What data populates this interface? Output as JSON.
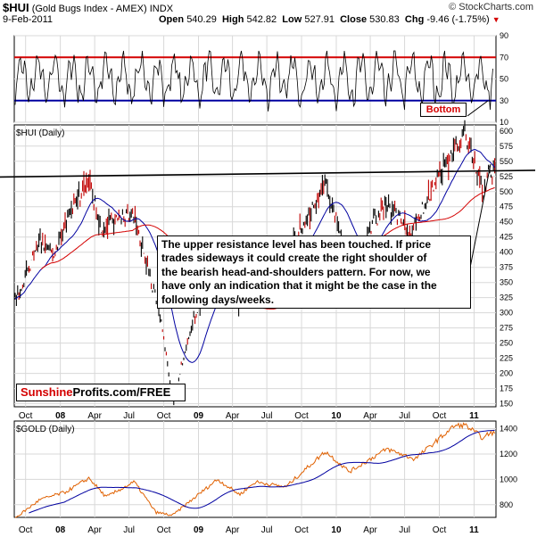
{
  "header": {
    "symbol": "$HUI",
    "name": "(Gold Bugs Index - AMEX)",
    "exchange": "INDX",
    "date": "9-Feb-2011",
    "open_label": "Open",
    "open": "540.29",
    "high_label": "High",
    "high": "542.82",
    "low_label": "Low",
    "low": "527.91",
    "close_label": "Close",
    "close": "530.83",
    "chg_label": "Chg",
    "chg": "-9.46 (-1.75%)",
    "chg_arrow": "▼",
    "watermark": "© StockCharts.com"
  },
  "annotation": {
    "lines": [
      "The upper resistance level has been touched. If price",
      "trades sideways it could create the right shoulder of",
      "the bearish head-and-shoulders pattern. For now, we",
      "have only an indication that it might be the case in the",
      "following days/weeks."
    ]
  },
  "branding": {
    "part1": "Sunshine",
    "part2": "Profits.com/FREE"
  },
  "bottom_label": "Bottom",
  "colors": {
    "price_bar": "#000000",
    "down_bar": "#c00000",
    "ma_short": "#0000a0",
    "ma_long": "#d40000",
    "rsi_line": "#000000",
    "rsi_upper": "#d40000",
    "rsi_lower": "#0000a0",
    "gold_line": "#e06000",
    "gold_ma": "#0000a0",
    "resistance": "#000000",
    "grid": "#d8d8d8"
  },
  "chart_data": [
    {
      "type": "line",
      "panel": "RSI",
      "ylim": [
        10,
        90
      ],
      "yticks": [
        90,
        70,
        50,
        30,
        10
      ],
      "reference_lines": [
        70,
        30
      ],
      "series": []
    },
    {
      "type": "candlestick",
      "panel": "price",
      "title": "$HUI (Daily)",
      "ylim": [
        145,
        610
      ],
      "yticks": [
        600,
        575,
        550,
        525,
        500,
        475,
        450,
        425,
        400,
        375,
        350,
        325,
        300,
        275,
        250,
        225,
        200,
        175,
        150
      ],
      "resistance_level": 525,
      "x_labels": [
        "Oct",
        "08",
        "Apr",
        "Jul",
        "Oct",
        "09",
        "Apr",
        "Jul",
        "Oct",
        "10",
        "Apr",
        "Jul",
        "Oct",
        "11"
      ],
      "x_label_bold": [
        false,
        true,
        false,
        false,
        false,
        true,
        false,
        false,
        false,
        true,
        false,
        false,
        false,
        true
      ],
      "x_start": "2007-09-01",
      "x_end": "2011-02-28",
      "key_prices": [
        {
          "date": "2007-09-01",
          "value": 315
        },
        {
          "date": "2007-10-01",
          "value": 360
        },
        {
          "date": "2007-11-08",
          "value": 420
        },
        {
          "date": "2007-12-15",
          "value": 395
        },
        {
          "date": "2008-01-20",
          "value": 460
        },
        {
          "date": "2008-03-15",
          "value": 520
        },
        {
          "date": "2008-04-20",
          "value": 440
        },
        {
          "date": "2008-06-15",
          "value": 460
        },
        {
          "date": "2008-07-15",
          "value": 460
        },
        {
          "date": "2008-08-20",
          "value": 375
        },
        {
          "date": "2008-09-20",
          "value": 300
        },
        {
          "date": "2008-10-27",
          "value": 152
        },
        {
          "date": "2008-11-20",
          "value": 220
        },
        {
          "date": "2008-12-20",
          "value": 290
        },
        {
          "date": "2009-02-15",
          "value": 360
        },
        {
          "date": "2009-04-20",
          "value": 310
        },
        {
          "date": "2009-06-05",
          "value": 390
        },
        {
          "date": "2009-07-10",
          "value": 335
        },
        {
          "date": "2009-09-15",
          "value": 420
        },
        {
          "date": "2009-12-03",
          "value": 515
        },
        {
          "date": "2010-02-05",
          "value": 375
        },
        {
          "date": "2010-04-10",
          "value": 450
        },
        {
          "date": "2010-05-15",
          "value": 480
        },
        {
          "date": "2010-07-20",
          "value": 430
        },
        {
          "date": "2010-08-25",
          "value": 480
        },
        {
          "date": "2010-10-15",
          "value": 540
        },
        {
          "date": "2010-12-07",
          "value": 600
        },
        {
          "date": "2011-01-25",
          "value": 500
        },
        {
          "date": "2011-02-09",
          "value": 531
        }
      ]
    },
    {
      "type": "line",
      "panel": "gold",
      "title": "$GOLD (Daily)",
      "ylim": [
        700,
        1460
      ],
      "yticks": [
        1400,
        1200,
        1000,
        800
      ],
      "x_labels": [
        "Oct",
        "08",
        "Apr",
        "Jul",
        "Oct",
        "09",
        "Apr",
        "Jul",
        "Oct",
        "10",
        "Apr",
        "Jul",
        "Oct",
        "11"
      ],
      "x_label_bold": [
        false,
        true,
        false,
        false,
        false,
        true,
        false,
        false,
        false,
        true,
        false,
        false,
        false,
        true
      ],
      "key_prices": [
        {
          "date": "2007-09-01",
          "value": 690
        },
        {
          "date": "2007-11-08",
          "value": 840
        },
        {
          "date": "2008-01-15",
          "value": 900
        },
        {
          "date": "2008-03-17",
          "value": 1010
        },
        {
          "date": "2008-05-01",
          "value": 860
        },
        {
          "date": "2008-07-15",
          "value": 980
        },
        {
          "date": "2008-09-10",
          "value": 740
        },
        {
          "date": "2008-10-24",
          "value": 715
        },
        {
          "date": "2009-02-20",
          "value": 1000
        },
        {
          "date": "2009-04-20",
          "value": 880
        },
        {
          "date": "2009-06-01",
          "value": 980
        },
        {
          "date": "2009-08-20",
          "value": 940
        },
        {
          "date": "2009-12-03",
          "value": 1220
        },
        {
          "date": "2010-02-05",
          "value": 1060
        },
        {
          "date": "2010-05-15",
          "value": 1240
        },
        {
          "date": "2010-07-28",
          "value": 1160
        },
        {
          "date": "2010-11-09",
          "value": 1420
        },
        {
          "date": "2010-12-07",
          "value": 1430
        },
        {
          "date": "2011-01-28",
          "value": 1320
        },
        {
          "date": "2011-02-09",
          "value": 1365
        }
      ]
    }
  ]
}
